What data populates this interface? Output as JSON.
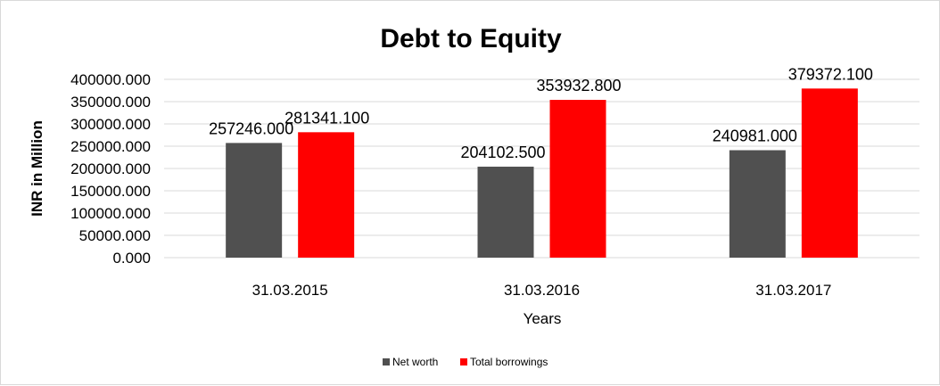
{
  "chart_data": {
    "type": "bar",
    "title": "Debt to Equity",
    "xlabel": "Years",
    "ylabel": "INR in Million",
    "categories": [
      "31.03.2015",
      "31.03.2016",
      "31.03.2017"
    ],
    "series": [
      {
        "name": "Net worth",
        "color": "#505050",
        "values": [
          257246.0,
          204102.5,
          240981.0
        ],
        "labels": [
          "257246.000",
          "204102.500",
          "240981.000"
        ]
      },
      {
        "name": "Total borrowings",
        "color": "#ff0000",
        "values": [
          281341.1,
          353932.8,
          379372.1
        ],
        "labels": [
          "281341.100",
          "353932.800",
          "379372.100"
        ]
      }
    ],
    "ylim": [
      0,
      400000
    ],
    "yticks": [
      {
        "value": 0,
        "label": "0.000"
      },
      {
        "value": 50000,
        "label": "50000.000"
      },
      {
        "value": 100000,
        "label": "100000.000"
      },
      {
        "value": 150000,
        "label": "150000.000"
      },
      {
        "value": 200000,
        "label": "200000.000"
      },
      {
        "value": 250000,
        "label": "250000.000"
      },
      {
        "value": 300000,
        "label": "300000.000"
      },
      {
        "value": 350000,
        "label": "350000.000"
      },
      {
        "value": 400000,
        "label": "400000.000"
      }
    ],
    "grid": true,
    "legend_position": "bottom",
    "gridline_color": "#d9d9d9"
  }
}
